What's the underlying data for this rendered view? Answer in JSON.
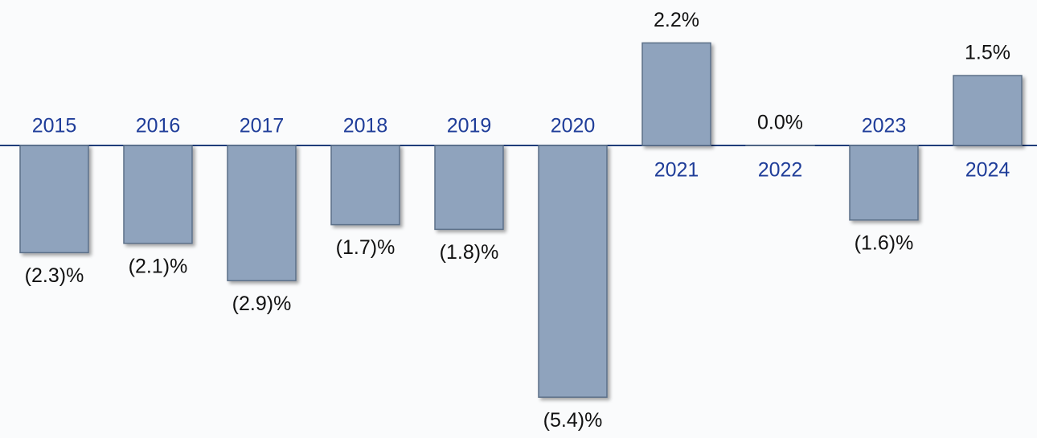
{
  "chart_data": {
    "type": "bar",
    "categories": [
      "2015",
      "2016",
      "2017",
      "2018",
      "2019",
      "2020",
      "2021",
      "2022",
      "2023",
      "2024"
    ],
    "values": [
      -2.3,
      -2.1,
      -2.9,
      -1.7,
      -1.8,
      -5.4,
      2.2,
      0.0,
      -1.6,
      1.5
    ],
    "value_labels": [
      "(2.3)%",
      "(2.1)%",
      "(2.9)%",
      "(1.7)%",
      "(1.8)%",
      "(5.4)%",
      "2.2%",
      "0.0%",
      "(1.6)%",
      "1.5%"
    ],
    "color": "#8fa3bd"
  }
}
